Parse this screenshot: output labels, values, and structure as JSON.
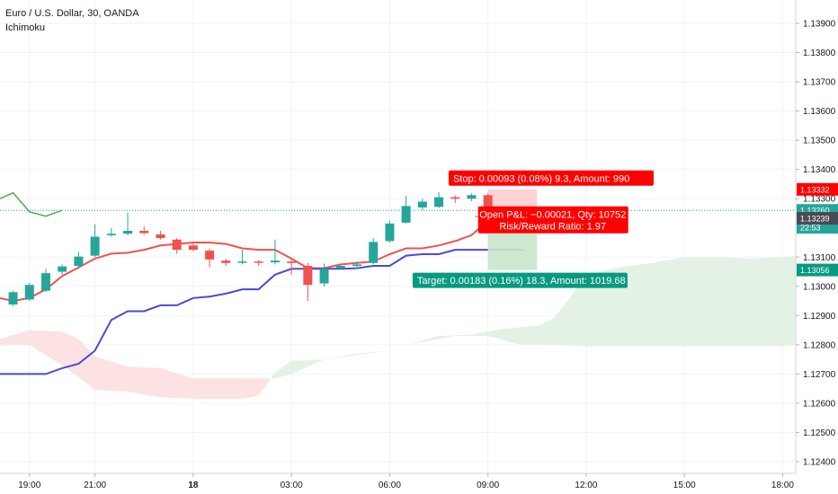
{
  "header": {
    "symbol": "Euro / U.S. Dollar, 30, OANDA",
    "indicator": "Ichimoku"
  },
  "colors": {
    "up": "#26a69a",
    "down": "#ef5350",
    "conversion": "#ef5350",
    "base": "#4a4ad8",
    "lagging": "#4caf50",
    "cloud_bull": "#e3f2e5",
    "cloud_bear": "#fde2e4",
    "stop": "#ff0000",
    "target": "#089981",
    "grid": "#f0f3fa"
  },
  "chart_data": {
    "type": "candlestick",
    "x_ticks": [
      "19:00",
      "21:00",
      "18",
      "03:00",
      "06:00",
      "09:00",
      "12:00",
      "15:00",
      "18:00"
    ],
    "y_ticks": [
      "1.13900",
      "1.13800",
      "1.13700",
      "1.13600",
      "1.13500",
      "1.13400",
      "1.13300",
      "1.13100",
      "1.13000",
      "1.12900",
      "1.12800",
      "1.12700",
      "1.12600",
      "1.12500",
      "1.12400"
    ],
    "ylim": [
      1.1236,
      1.1398
    ],
    "x_range_hours": [
      18.1,
      42.4
    ],
    "candles": [
      {
        "t": 18.5,
        "o": 1.12938,
        "h": 1.12985,
        "l": 1.12932,
        "c": 1.1298
      },
      {
        "t": 19.0,
        "o": 1.12955,
        "h": 1.13012,
        "l": 1.1295,
        "c": 1.13005
      },
      {
        "t": 19.5,
        "o": 1.12985,
        "h": 1.1306,
        "l": 1.1298,
        "c": 1.13045
      },
      {
        "t": 20.0,
        "o": 1.1305,
        "h": 1.13075,
        "l": 1.1304,
        "c": 1.13068
      },
      {
        "t": 20.5,
        "o": 1.1307,
        "h": 1.13118,
        "l": 1.1306,
        "c": 1.13102
      },
      {
        "t": 21.0,
        "o": 1.13105,
        "h": 1.13212,
        "l": 1.131,
        "c": 1.1317
      },
      {
        "t": 21.5,
        "o": 1.13175,
        "h": 1.132,
        "l": 1.1317,
        "c": 1.1318
      },
      {
        "t": 22.0,
        "o": 1.1318,
        "h": 1.13252,
        "l": 1.13175,
        "c": 1.1319
      },
      {
        "t": 22.5,
        "o": 1.1319,
        "h": 1.13205,
        "l": 1.13178,
        "c": 1.13182
      },
      {
        "t": 23.0,
        "o": 1.13178,
        "h": 1.1319,
        "l": 1.1316,
        "c": 1.13165
      },
      {
        "t": 23.5,
        "o": 1.1316,
        "h": 1.13165,
        "l": 1.13112,
        "c": 1.13125
      },
      {
        "t": 24.0,
        "o": 1.1314,
        "h": 1.1315,
        "l": 1.1312,
        "c": 1.13125
      },
      {
        "t": 24.5,
        "o": 1.13122,
        "h": 1.1313,
        "l": 1.13065,
        "c": 1.13092
      },
      {
        "t": 25.0,
        "o": 1.13088,
        "h": 1.13095,
        "l": 1.1307,
        "c": 1.1308
      },
      {
        "t": 25.5,
        "o": 1.13082,
        "h": 1.13125,
        "l": 1.13075,
        "c": 1.13085
      },
      {
        "t": 26.0,
        "o": 1.13085,
        "h": 1.1309,
        "l": 1.1307,
        "c": 1.13082
      },
      {
        "t": 26.5,
        "o": 1.13082,
        "h": 1.1316,
        "l": 1.13075,
        "c": 1.13088
      },
      {
        "t": 27.0,
        "o": 1.13085,
        "h": 1.1309,
        "l": 1.1304,
        "c": 1.1308
      },
      {
        "t": 27.5,
        "o": 1.1307,
        "h": 1.1308,
        "l": 1.1295,
        "c": 1.13005
      },
      {
        "t": 28.0,
        "o": 1.1301,
        "h": 1.13078,
        "l": 1.13,
        "c": 1.1306
      },
      {
        "t": 28.5,
        "o": 1.13062,
        "h": 1.13078,
        "l": 1.1306,
        "c": 1.1307
      },
      {
        "t": 29.0,
        "o": 1.1307,
        "h": 1.13085,
        "l": 1.1306,
        "c": 1.13075
      },
      {
        "t": 29.5,
        "o": 1.1308,
        "h": 1.13165,
        "l": 1.13075,
        "c": 1.13152
      },
      {
        "t": 30.0,
        "o": 1.13155,
        "h": 1.13225,
        "l": 1.1315,
        "c": 1.13215
      },
      {
        "t": 30.5,
        "o": 1.13218,
        "h": 1.1331,
        "l": 1.13215,
        "c": 1.13275
      },
      {
        "t": 31.0,
        "o": 1.1327,
        "h": 1.133,
        "l": 1.1326,
        "c": 1.1329
      },
      {
        "t": 31.5,
        "o": 1.13272,
        "h": 1.13322,
        "l": 1.13268,
        "c": 1.13305
      },
      {
        "t": 32.0,
        "o": 1.13305,
        "h": 1.13312,
        "l": 1.13285,
        "c": 1.133
      },
      {
        "t": 32.5,
        "o": 1.133,
        "h": 1.13318,
        "l": 1.13292,
        "c": 1.13312
      },
      {
        "t": 33.0,
        "o": 1.13312,
        "h": 1.13318,
        "l": 1.1323,
        "c": 1.13255
      }
    ],
    "tenkan": [
      [
        18.1,
        1.1296
      ],
      [
        18.5,
        1.1295
      ],
      [
        19.0,
        1.1296
      ],
      [
        19.5,
        1.1299
      ],
      [
        20.0,
        1.13035
      ],
      [
        20.5,
        1.13065
      ],
      [
        21.0,
        1.13095
      ],
      [
        21.5,
        1.13112
      ],
      [
        22.0,
        1.13115
      ],
      [
        22.5,
        1.13125
      ],
      [
        23.0,
        1.1314
      ],
      [
        23.5,
        1.13145
      ],
      [
        24.0,
        1.1315
      ],
      [
        24.5,
        1.1315
      ],
      [
        25.0,
        1.13145
      ],
      [
        25.5,
        1.1313
      ],
      [
        26.0,
        1.13125
      ],
      [
        26.5,
        1.13125
      ],
      [
        27.0,
        1.13095
      ],
      [
        27.5,
        1.13062
      ],
      [
        28.0,
        1.13062
      ],
      [
        28.5,
        1.13075
      ],
      [
        29.0,
        1.1308
      ],
      [
        29.5,
        1.13085
      ],
      [
        30.0,
        1.1311
      ],
      [
        30.5,
        1.1313
      ],
      [
        31.0,
        1.1313
      ],
      [
        31.5,
        1.1314
      ],
      [
        32.0,
        1.13155
      ],
      [
        32.5,
        1.13175
      ],
      [
        33.0,
        1.13225
      ]
    ],
    "kijun": [
      [
        18.1,
        1.127
      ],
      [
        19.5,
        1.127
      ],
      [
        20.0,
        1.1272
      ],
      [
        20.5,
        1.12735
      ],
      [
        21.0,
        1.1278
      ],
      [
        21.5,
        1.12885
      ],
      [
        22.0,
        1.12915
      ],
      [
        22.5,
        1.12915
      ],
      [
        23.0,
        1.12935
      ],
      [
        23.5,
        1.12935
      ],
      [
        24.0,
        1.1296
      ],
      [
        24.5,
        1.12965
      ],
      [
        25.0,
        1.12975
      ],
      [
        25.5,
        1.1299
      ],
      [
        26.0,
        1.1299
      ],
      [
        26.5,
        1.1304
      ],
      [
        27.0,
        1.1306
      ],
      [
        27.5,
        1.1306
      ],
      [
        28.0,
        1.1306
      ],
      [
        28.5,
        1.1306
      ],
      [
        29.0,
        1.13062
      ],
      [
        29.5,
        1.1307
      ],
      [
        30.0,
        1.1307
      ],
      [
        30.5,
        1.13105
      ],
      [
        31.0,
        1.1311
      ],
      [
        31.5,
        1.1311
      ],
      [
        32.0,
        1.13125
      ],
      [
        32.5,
        1.13125
      ],
      [
        33.0,
        1.13125
      ],
      [
        34.1,
        1.13125
      ]
    ],
    "chikou": [
      [
        18.1,
        1.133
      ],
      [
        18.5,
        1.1332
      ],
      [
        19.0,
        1.13255
      ],
      [
        19.5,
        1.1324
      ],
      [
        20.0,
        1.1326
      ]
    ],
    "span_a": [
      [
        18.1,
        1.128
      ],
      [
        19.0,
        1.128
      ],
      [
        20.0,
        1.1273
      ],
      [
        20.5,
        1.1269
      ],
      [
        21.0,
        1.12645
      ],
      [
        22.0,
        1.1264
      ],
      [
        23.0,
        1.1262
      ],
      [
        24.0,
        1.12615
      ],
      [
        25.5,
        1.12615
      ],
      [
        26.0,
        1.12625
      ],
      [
        26.5,
        1.12705
      ],
      [
        27.0,
        1.12745
      ],
      [
        28.0,
        1.1275
      ],
      [
        29.0,
        1.1277
      ],
      [
        30.0,
        1.1278
      ],
      [
        30.5,
        1.128
      ],
      [
        31.5,
        1.1283
      ],
      [
        32.5,
        1.12835
      ],
      [
        33.5,
        1.12855
      ],
      [
        34.5,
        1.12865
      ],
      [
        35.0,
        1.1289
      ],
      [
        35.5,
        1.1296
      ],
      [
        36.0,
        1.1304
      ],
      [
        37.0,
        1.13065
      ],
      [
        38.0,
        1.1308
      ],
      [
        39.0,
        1.131
      ],
      [
        40.0,
        1.131
      ],
      [
        41.0,
        1.13095
      ],
      [
        42.0,
        1.131
      ],
      [
        42.4,
        1.13105
      ]
    ],
    "span_b": [
      [
        18.1,
        1.1282
      ],
      [
        19.0,
        1.1285
      ],
      [
        20.0,
        1.12845
      ],
      [
        20.5,
        1.1282
      ],
      [
        21.0,
        1.1276
      ],
      [
        22.0,
        1.12725
      ],
      [
        23.0,
        1.1272
      ],
      [
        24.0,
        1.12685
      ],
      [
        26.0,
        1.12685
      ],
      [
        26.5,
        1.12685
      ],
      [
        27.0,
        1.127
      ],
      [
        28.0,
        1.1275
      ],
      [
        29.0,
        1.12765
      ],
      [
        30.0,
        1.1278
      ],
      [
        30.5,
        1.128
      ],
      [
        31.5,
        1.1282
      ],
      [
        32.0,
        1.1283
      ],
      [
        32.5,
        1.1283
      ],
      [
        33.0,
        1.1283
      ],
      [
        34.0,
        1.128
      ],
      [
        35.0,
        1.128
      ],
      [
        36.0,
        1.12795
      ],
      [
        38.0,
        1.12795
      ],
      [
        40.0,
        1.12795
      ],
      [
        42.0,
        1.12795
      ],
      [
        42.4,
        1.128
      ]
    ],
    "position": {
      "t_start": 33.0,
      "t_end": 34.5,
      "entry": 1.13239,
      "stop": 1.13332,
      "target": 1.13056,
      "stop_label": "Stop: 0.00093 (0.08%) 9.3, Amount: 990",
      "target_label": "Target: 0.00183 (0.16%) 18.3, Amount: 1019.68",
      "pnl_label": "Open P&L: −0.00021, Qty: 10752",
      "rr_label": "Risk/Reward Ratio: 1.97"
    },
    "current_price": 1.1326,
    "price_tags": [
      {
        "label": "1.13332",
        "value": 1.13332,
        "color": "#ff0000"
      },
      {
        "label": "1.13260",
        "value": 1.1326,
        "color": "#26a69a"
      },
      {
        "label": "22:53",
        "value": 1.13245,
        "color": "#26a69a",
        "offset": 14
      },
      {
        "label": "1.13239",
        "value": 1.13239,
        "color": "#4a4a55",
        "offset": 2
      },
      {
        "label": "1.13056",
        "value": 1.13056,
        "color": "#089981"
      }
    ]
  }
}
